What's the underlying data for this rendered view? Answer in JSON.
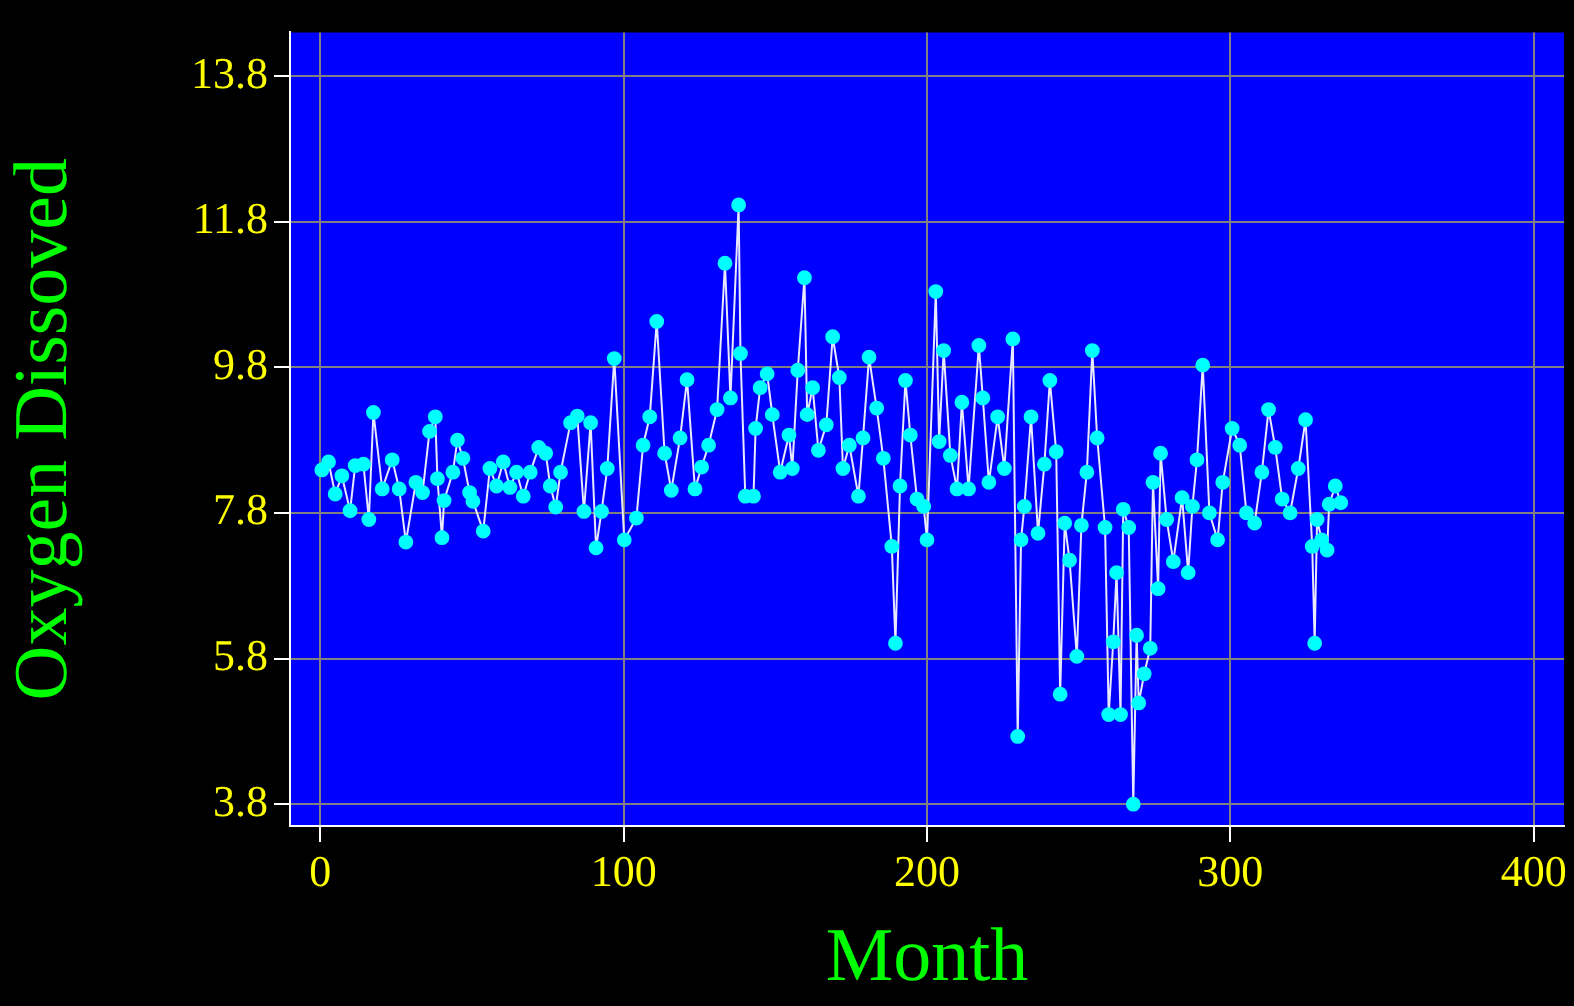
{
  "chart_data": {
    "type": "line",
    "xlabel": "Month",
    "ylabel": "Oxygen Dissoved",
    "xlim": [
      -10,
      410
    ],
    "xticks": [
      0,
      100,
      200,
      300,
      400
    ],
    "ylim": [
      3.5,
      14.4
    ],
    "yticks": [
      3.8,
      5.8,
      7.8,
      9.8,
      11.8,
      13.8
    ],
    "grid": true,
    "marker": "circle",
    "line_style": "solid",
    "series": [
      {
        "color": "#00ffff",
        "x": [
          0.5,
          2.7,
          4.9,
          7.1,
          9.8,
          11.5,
          14.2,
          16,
          17.5,
          20.4,
          23.7,
          26,
          28.2,
          31.5,
          33.7,
          36,
          37.9,
          38.6,
          40.1,
          40.8,
          43.7,
          45.2,
          47,
          49.2,
          50.3,
          53.7,
          55.9,
          58.1,
          60.3,
          62.5,
          64.7,
          66.9,
          69.2,
          72,
          74.3,
          75.8,
          77.6,
          79.2,
          82.5,
          84.7,
          86.9,
          89.1,
          90.9,
          92.7,
          94.6,
          96.9,
          100.2,
          104.2,
          106.4,
          108.6,
          110.9,
          113.5,
          115.7,
          118.6,
          120.9,
          123.5,
          125.7,
          128,
          130.8,
          133.4,
          135.2,
          137.9,
          138.5,
          140.1,
          142.8,
          143.5,
          145,
          147.3,
          149,
          151.6,
          154.5,
          155.6,
          157.4,
          159.6,
          160.5,
          162.3,
          164.2,
          166.8,
          168.9,
          171.1,
          172.3,
          174.4,
          177.4,
          178.9,
          180.9,
          183.4,
          185.6,
          188.4,
          189.6,
          191.1,
          192.9,
          194.5,
          196.7,
          198.9,
          200,
          202.9,
          204,
          205.5,
          207.7,
          209.9,
          211.5,
          213.7,
          217.1,
          218.4,
          220.4,
          223.3,
          225.5,
          228.3,
          229.9,
          231,
          232.1,
          234.3,
          236.6,
          238.7,
          240.5,
          242.6,
          243.9,
          245.4,
          247,
          249.4,
          250.9,
          252.7,
          254.5,
          256.1,
          258.7,
          259.9,
          261.4,
          262.5,
          263.8,
          264.7,
          266.5,
          268,
          269.1,
          269.8,
          271.6,
          273.6,
          274.5,
          276.2,
          277,
          279,
          281.2,
          284.1,
          286.1,
          287.5,
          289,
          290.9,
          293.1,
          295.8,
          297.5,
          300.6,
          303.1,
          305.3,
          308,
          310.4,
          312.6,
          314.8,
          317.1,
          319.7,
          322.4,
          324.8,
          327,
          327.8,
          328.6,
          330.1,
          331.9,
          332.6,
          334.6,
          336.4
        ],
        "values": [
          8.39,
          8.5,
          8.06,
          8.31,
          7.83,
          8.45,
          8.47,
          7.71,
          9.18,
          8.13,
          8.53,
          8.13,
          7.4,
          8.22,
          8.08,
          8.92,
          9.12,
          8.27,
          7.46,
          7.97,
          8.36,
          8.8,
          8.55,
          8.08,
          7.96,
          7.55,
          8.41,
          8.17,
          8.5,
          8.15,
          8.36,
          8.03,
          8.36,
          8.7,
          8.62,
          8.17,
          7.88,
          8.36,
          9.04,
          9.13,
          7.82,
          9.04,
          7.32,
          7.82,
          8.41,
          9.92,
          7.43,
          7.73,
          8.73,
          9.12,
          10.43,
          8.62,
          8.11,
          8.83,
          9.63,
          8.13,
          8.43,
          8.73,
          9.22,
          11.23,
          9.38,
          12.03,
          9.99,
          8.03,
          8.03,
          8.96,
          9.52,
          9.71,
          9.15,
          8.36,
          8.87,
          8.41,
          9.76,
          11.03,
          9.15,
          9.52,
          8.66,
          9.01,
          10.22,
          9.66,
          8.41,
          8.73,
          8.03,
          8.83,
          9.94,
          9.24,
          8.55,
          7.34,
          6.01,
          8.17,
          9.62,
          8.87,
          7.99,
          7.89,
          7.43,
          10.84,
          8.78,
          10.03,
          8.59,
          8.13,
          9.32,
          8.13,
          10.1,
          9.38,
          8.22,
          9.12,
          8.41,
          10.19,
          4.73,
          7.43,
          7.89,
          9.12,
          7.52,
          8.47,
          9.62,
          8.64,
          5.31,
          7.66,
          7.15,
          5.83,
          7.63,
          8.36,
          10.03,
          8.83,
          7.6,
          5.03,
          6.03,
          6.98,
          5.03,
          7.85,
          7.6,
          3.8,
          6.12,
          5.19,
          5.59,
          5.94,
          8.22,
          6.76,
          8.62,
          7.71,
          7.13,
          8.01,
          6.98,
          7.89,
          8.53,
          9.83,
          7.8,
          7.43,
          8.22,
          8.96,
          8.73,
          7.8,
          7.66,
          8.36,
          9.22,
          8.7,
          7.99,
          7.8,
          8.41,
          9.08,
          7.34,
          6.01,
          7.71,
          7.43,
          7.29,
          7.92,
          8.17,
          7.94
        ]
      }
    ]
  }
}
